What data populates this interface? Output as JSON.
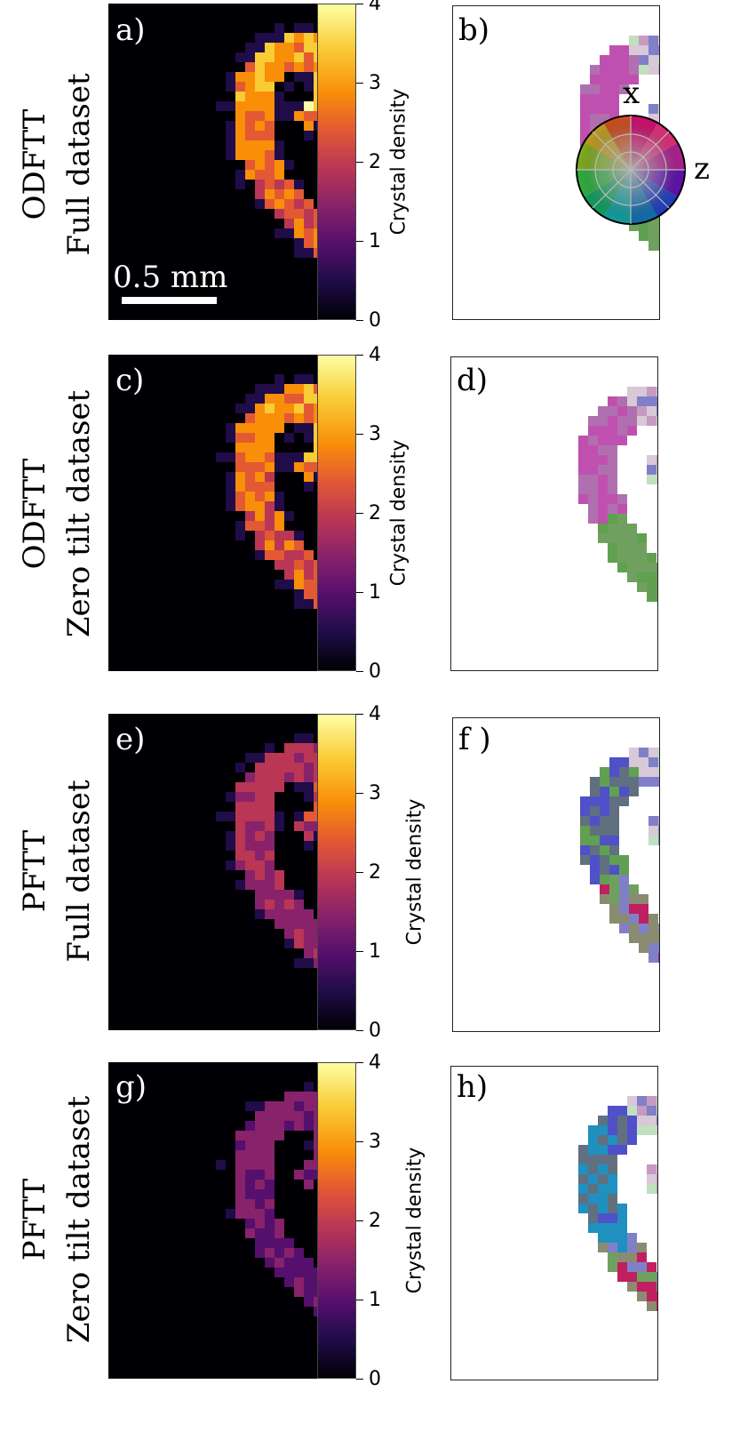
{
  "rows": [
    {
      "method": "ODFTT",
      "dataset": "Full dataset",
      "density_letter": "a)",
      "orient_letter": "b)",
      "intensity": 1.0
    },
    {
      "method": "ODFTT",
      "dataset": "Zero tilt dataset",
      "density_letter": "c)",
      "orient_letter": "d)",
      "intensity": 0.95
    },
    {
      "method": "PFTT",
      "dataset": "Full dataset",
      "density_letter": "e)",
      "orient_letter": "f )",
      "intensity": 0.62
    },
    {
      "method": "PFTT",
      "dataset": "Zero tilt dataset",
      "density_letter": "g)",
      "orient_letter": "h)",
      "intensity": 0.45
    }
  ],
  "colorbar": {
    "label": "Crystal density",
    "ticks": [
      "0",
      "1",
      "2",
      "3",
      "4"
    ],
    "min": 0,
    "max": 4,
    "colormap": "inferno"
  },
  "scalebar": {
    "label": "0.5 mm"
  },
  "color_key": {
    "axis_top": "x",
    "axis_right": "z"
  },
  "colors": {
    "background_dark": "#000004",
    "orientation_palette": [
      "#d8c8d8",
      "#c89ac0",
      "#b070b0",
      "#c050b0",
      "#8080c8",
      "#5050c8",
      "#2020c0",
      "#70a060",
      "#60a050",
      "#40b040",
      "#c0e0c0",
      "#a0d0c0",
      "#e0b0c0",
      "#b06070",
      "#c02060",
      "#8b8b70",
      "#607080",
      "#2090c0"
    ]
  }
}
